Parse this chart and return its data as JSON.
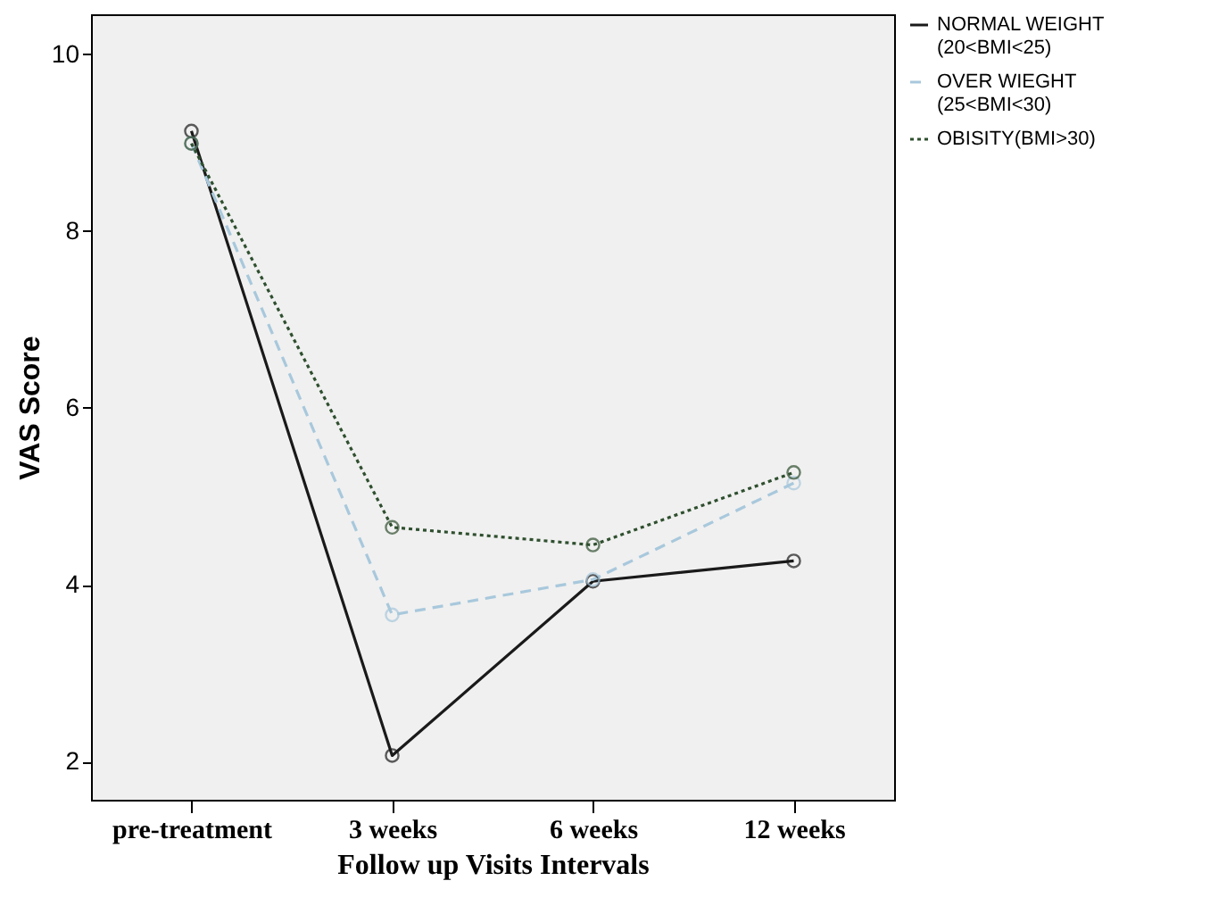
{
  "chart_data": {
    "type": "line",
    "xlabel": "Follow up Visits Intervals",
    "ylabel": "VAS Score",
    "categories": [
      "pre-treatment",
      "3 weeks",
      "6 weeks",
      "12 weeks"
    ],
    "ylim": [
      1.57,
      10.45
    ],
    "yticks": [
      2,
      4,
      6,
      8,
      10
    ],
    "grid": false,
    "legend": "right",
    "marker": "circle",
    "series": [
      {
        "name": "NORMAL WEIGHT (20<BMI<25)",
        "color": "#1a1a1a",
        "line_style": "solid",
        "values": [
          9.13,
          2.07,
          4.04,
          4.27
        ]
      },
      {
        "name": "OVER WIEGHT (25<BMI<30)",
        "color": "#a8c8dc",
        "line_style": "dashed",
        "values": [
          8.99,
          3.66,
          4.06,
          5.15
        ]
      },
      {
        "name": "OBISITY(BMI>30)",
        "color": "#2f4f2f",
        "line_style": "dotted",
        "values": [
          8.99,
          4.65,
          4.45,
          5.27
        ]
      }
    ]
  }
}
